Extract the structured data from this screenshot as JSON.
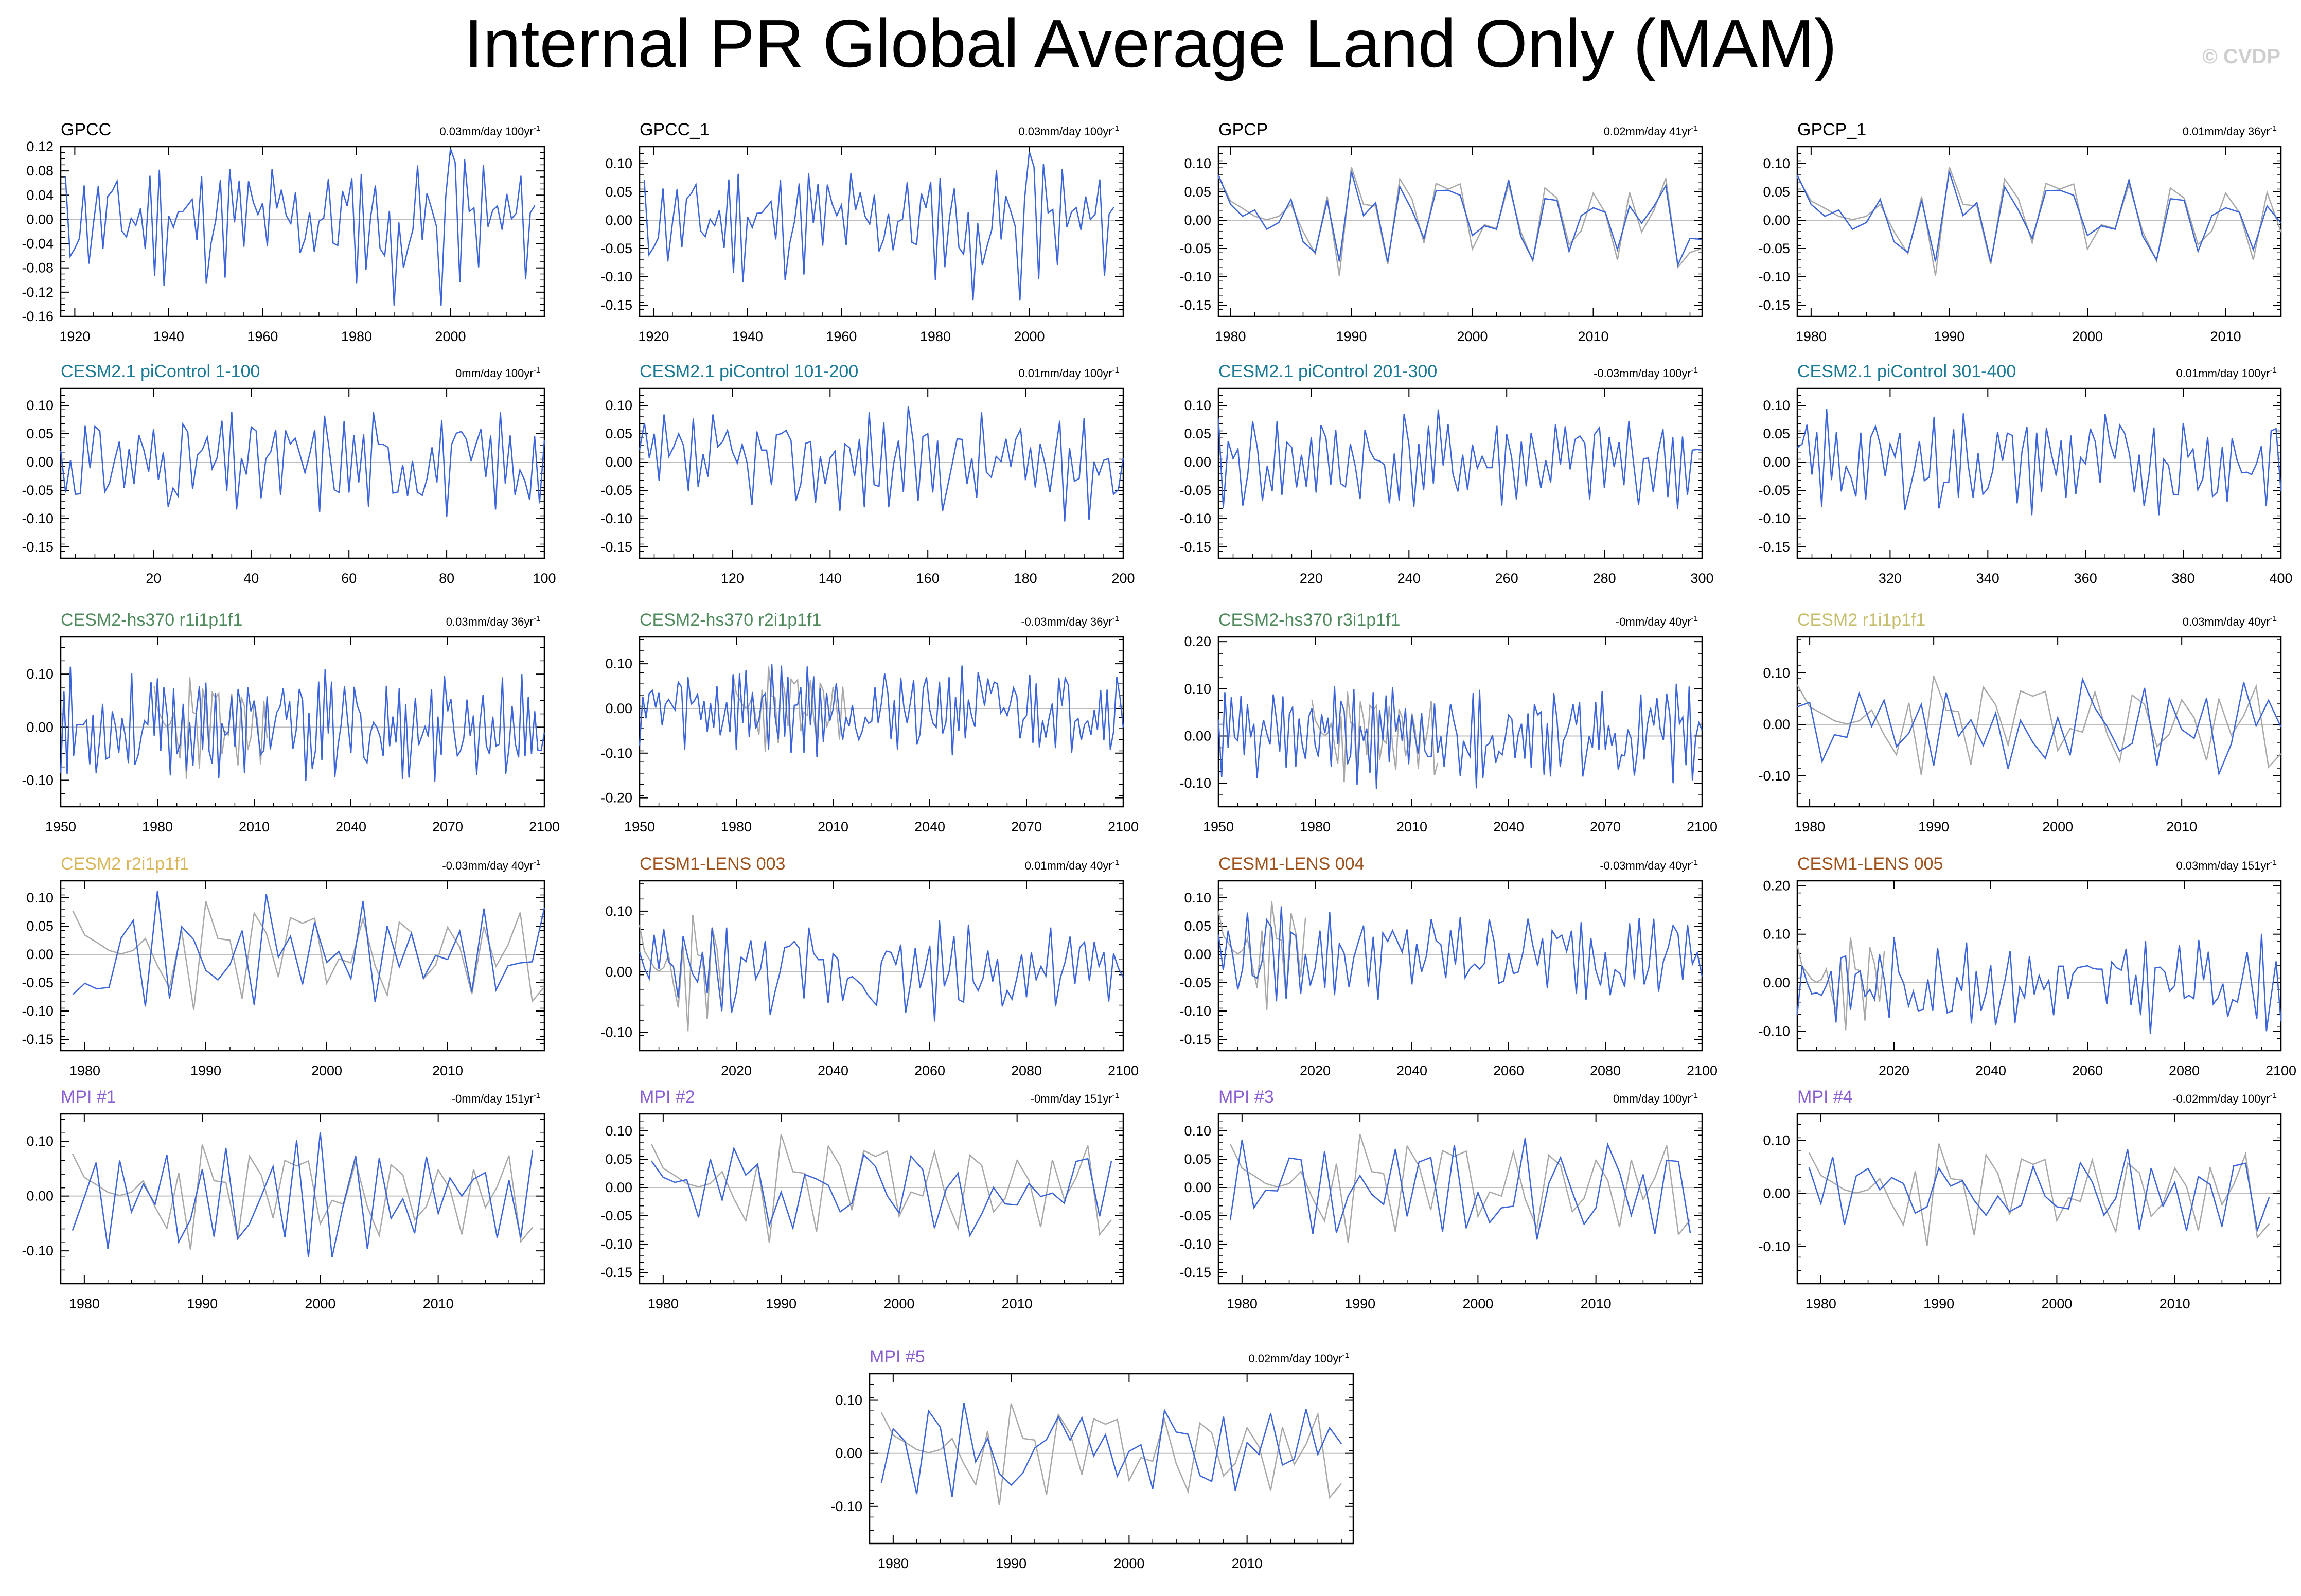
{
  "page": {
    "title": "Internal PR Global Average Land Only (MAM)",
    "copyright": "© CVDP"
  },
  "chart_data": [
    {
      "type": "line",
      "row": 0,
      "col": 0,
      "title": "GPCC",
      "title_color": "#000000",
      "trend": "0.03mm/day 100yr",
      "yticks": [
        0.12,
        0.08,
        0.04,
        0.0,
        -0.04,
        -0.08,
        -0.12,
        -0.16
      ],
      "yfmt": 2,
      "ylim": [
        -0.16,
        0.12
      ],
      "xlim": [
        1917,
        2020
      ],
      "xticks": [
        1920,
        1940,
        1960,
        1980,
        2000
      ],
      "n": 101,
      "x_start": 1918,
      "x_step": 1,
      "seed": 11,
      "amp": 0.055,
      "ref": false,
      "highlights": [
        [
          82,
          0.121
        ],
        [
          70,
          -0.142
        ],
        [
          80,
          -0.142
        ]
      ]
    },
    {
      "type": "line",
      "row": 0,
      "col": 1,
      "title": "GPCC_1",
      "title_color": "#000000",
      "trend": "0.03mm/day 100yr",
      "yticks": [
        0.1,
        0.05,
        0.0,
        -0.05,
        -0.1,
        -0.15
      ],
      "yfmt": 2,
      "ylim": [
        -0.17,
        0.13
      ],
      "xlim": [
        1917,
        2020
      ],
      "xticks": [
        1920,
        1940,
        1960,
        1980,
        2000
      ],
      "n": 101,
      "x_start": 1918,
      "x_step": 1,
      "seed": 11,
      "amp": 0.055,
      "ref": false,
      "highlights": [
        [
          82,
          0.121
        ],
        [
          70,
          -0.142
        ],
        [
          80,
          -0.142
        ]
      ]
    },
    {
      "type": "line",
      "row": 0,
      "col": 2,
      "title": "GPCP",
      "title_color": "#000000",
      "trend": "0.02mm/day 41yr",
      "yticks": [
        0.1,
        0.05,
        0.0,
        -0.05,
        -0.1,
        -0.15
      ],
      "yfmt": 2,
      "ylim": [
        -0.17,
        0.13
      ],
      "xlim": [
        1979,
        2019
      ],
      "xticks": [
        1980,
        1990,
        2000,
        2010
      ],
      "n": 41,
      "x_start": 1979,
      "x_step": 1,
      "seed": 23,
      "amp": 0.06,
      "ref": true,
      "ref_seed": 23,
      "ref_mix": 0.85
    },
    {
      "type": "line",
      "row": 0,
      "col": 3,
      "title": "GPCP_1",
      "title_color": "#000000",
      "trend": "0.01mm/day 36yr",
      "yticks": [
        0.1,
        0.05,
        0.0,
        -0.05,
        -0.1,
        -0.15
      ],
      "yfmt": 2,
      "ylim": [
        -0.17,
        0.13
      ],
      "xlim": [
        1979,
        2014
      ],
      "xticks": [
        1980,
        1990,
        2000,
        2010
      ],
      "n": 36,
      "x_start": 1979,
      "x_step": 1,
      "seed": 23,
      "amp": 0.06,
      "ref": true,
      "ref_seed": 23,
      "ref_mix": 0.85
    },
    {
      "type": "line",
      "row": 1,
      "col": 0,
      "title": "CESM2.1 piControl 1-100",
      "title_color": "#1a7a96",
      "trend": "0mm/day 100yr",
      "yticks": [
        0.1,
        0.05,
        0.0,
        -0.05,
        -0.1,
        -0.15
      ],
      "yfmt": 2,
      "ylim": [
        -0.17,
        0.13
      ],
      "xlim": [
        1,
        100
      ],
      "xticks": [
        20,
        40,
        60,
        80,
        100
      ],
      "n": 100,
      "x_start": 1,
      "x_step": 1,
      "seed": 31,
      "amp": 0.05,
      "ref": false
    },
    {
      "type": "line",
      "row": 1,
      "col": 1,
      "title": "CESM2.1 piControl 101-200",
      "title_color": "#1a7a96",
      "trend": "0.01mm/day 100yr",
      "yticks": [
        0.1,
        0.05,
        0.0,
        -0.05,
        -0.1,
        -0.15
      ],
      "yfmt": 2,
      "ylim": [
        -0.17,
        0.13
      ],
      "xlim": [
        101,
        200
      ],
      "xticks": [
        120,
        140,
        160,
        180,
        200
      ],
      "n": 100,
      "x_start": 101,
      "x_step": 1,
      "seed": 37,
      "amp": 0.05,
      "ref": false
    },
    {
      "type": "line",
      "row": 1,
      "col": 2,
      "title": "CESM2.1 piControl 201-300",
      "title_color": "#1a7a96",
      "trend": "-0.03mm/day 100yr",
      "yticks": [
        0.1,
        0.05,
        0.0,
        -0.05,
        -0.1,
        -0.15
      ],
      "yfmt": 2,
      "ylim": [
        -0.17,
        0.13
      ],
      "xlim": [
        201,
        300
      ],
      "xticks": [
        220,
        240,
        260,
        280,
        300
      ],
      "n": 100,
      "x_start": 201,
      "x_step": 1,
      "seed": 41,
      "amp": 0.05,
      "ref": false
    },
    {
      "type": "line",
      "row": 1,
      "col": 3,
      "title": "CESM2.1 piControl 301-400",
      "title_color": "#1a7a96",
      "trend": "0.01mm/day 100yr",
      "yticks": [
        0.1,
        0.05,
        0.0,
        -0.05,
        -0.1,
        -0.15
      ],
      "yfmt": 2,
      "ylim": [
        -0.17,
        0.13
      ],
      "xlim": [
        301,
        400
      ],
      "xticks": [
        320,
        340,
        360,
        380,
        400
      ],
      "n": 100,
      "x_start": 301,
      "x_step": 1,
      "seed": 43,
      "amp": 0.05,
      "ref": false
    },
    {
      "type": "line",
      "row": 2,
      "col": 0,
      "title": "CESM2-hs370 r1i1p1f1",
      "title_color": "#4f8a5c",
      "trend": "0.03mm/day 36yr",
      "yticks": [
        0.1,
        0.0,
        -0.1
      ],
      "yfmt": 2,
      "ylim": [
        -0.15,
        0.17
      ],
      "xlim": [
        1950,
        2100
      ],
      "xticks": [
        1950,
        1980,
        2010,
        2040,
        2070,
        2100
      ],
      "n": 151,
      "x_start": 1950,
      "x_step": 1,
      "seed": 53,
      "amp": 0.055,
      "ref": true,
      "ref_seed": 23,
      "ref_n": 36,
      "ref_x_start": 1979,
      "ref_mix": 0
    },
    {
      "type": "line",
      "row": 2,
      "col": 1,
      "title": "CESM2-hs370 r2i1p1f1",
      "title_color": "#4f8a5c",
      "trend": "-0.03mm/day 36yr",
      "yticks": [
        0.1,
        0.0,
        -0.1,
        -0.2
      ],
      "yfmt": 2,
      "ylim": [
        -0.22,
        0.16
      ],
      "xlim": [
        1950,
        2100
      ],
      "xticks": [
        1950,
        1980,
        2010,
        2040,
        2070,
        2100
      ],
      "n": 151,
      "x_start": 1950,
      "x_step": 1,
      "seed": 59,
      "amp": 0.055,
      "ref": true,
      "ref_seed": 23,
      "ref_n": 36,
      "ref_x_start": 1979,
      "ref_mix": 0
    },
    {
      "type": "line",
      "row": 2,
      "col": 2,
      "title": "CESM2-hs370 r3i1p1f1",
      "title_color": "#4f8a5c",
      "trend": "-0mm/day 40yr",
      "yticks": [
        0.2,
        0.1,
        0.0,
        -0.1
      ],
      "yfmt": 2,
      "ylim": [
        -0.15,
        0.21
      ],
      "xlim": [
        1950,
        2100
      ],
      "xticks": [
        1950,
        1980,
        2010,
        2040,
        2070,
        2100
      ],
      "n": 151,
      "x_start": 1950,
      "x_step": 1,
      "seed": 61,
      "amp": 0.055,
      "ref": true,
      "ref_seed": 23,
      "ref_n": 40,
      "ref_x_start": 1979,
      "ref_mix": 0
    },
    {
      "type": "line",
      "row": 2,
      "col": 3,
      "title": "CESM2 r1i1p1f1",
      "title_color": "#c6be6d",
      "trend": "0.03mm/day 40yr",
      "yticks": [
        0.1,
        0.0,
        -0.1
      ],
      "yfmt": 2,
      "ylim": [
        -0.16,
        0.17
      ],
      "xlim": [
        1979,
        2018
      ],
      "xticks": [
        1980,
        1990,
        2000,
        2010
      ],
      "n": 40,
      "x_start": 1979,
      "x_step": 1,
      "seed": 67,
      "amp": 0.05,
      "ref": true,
      "ref_seed": 23,
      "ref_mix": 0
    },
    {
      "type": "line",
      "row": 3,
      "col": 0,
      "title": "CESM2 r2i1p1f1",
      "title_color": "#d8b65a",
      "trend": "-0.03mm/day 40yr",
      "yticks": [
        0.1,
        0.05,
        0.0,
        -0.05,
        -0.1,
        -0.15
      ],
      "yfmt": 2,
      "ylim": [
        -0.17,
        0.13
      ],
      "xlim": [
        1978,
        2018
      ],
      "xticks": [
        1980,
        1990,
        2000,
        2010
      ],
      "n": 40,
      "x_start": 1979,
      "x_step": 1,
      "seed": 71,
      "amp": 0.05,
      "ref": true,
      "ref_seed": 23,
      "ref_mix": 0
    },
    {
      "type": "line",
      "row": 3,
      "col": 1,
      "title": "CESM1-LENS 003",
      "title_color": "#a0521c",
      "trend": "0.01mm/day 40yr",
      "yticks": [
        0.1,
        0.0,
        -0.1
      ],
      "yfmt": 2,
      "ylim": [
        -0.13,
        0.15
      ],
      "xlim": [
        2000,
        2100
      ],
      "xticks": [
        2020,
        2040,
        2060,
        2080,
        2100
      ],
      "n": 101,
      "x_start": 2000,
      "x_step": 1,
      "seed": 73,
      "amp": 0.045,
      "ref": true,
      "ref_seed": 23,
      "ref_n": 19,
      "ref_x_start": 2000,
      "ref_mix": 0
    },
    {
      "type": "line",
      "row": 3,
      "col": 2,
      "title": "CESM1-LENS 004",
      "title_color": "#a0521c",
      "trend": "-0.03mm/day 40yr",
      "yticks": [
        0.1,
        0.05,
        0.0,
        -0.05,
        -0.1,
        -0.15
      ],
      "yfmt": 2,
      "ylim": [
        -0.17,
        0.13
      ],
      "xlim": [
        2000,
        2100
      ],
      "xticks": [
        2020,
        2040,
        2060,
        2080,
        2100
      ],
      "n": 101,
      "x_start": 2000,
      "x_step": 1,
      "seed": 79,
      "amp": 0.045,
      "ref": true,
      "ref_seed": 23,
      "ref_n": 19,
      "ref_x_start": 2000,
      "ref_mix": 0
    },
    {
      "type": "line",
      "row": 3,
      "col": 3,
      "title": "CESM1-LENS 005",
      "title_color": "#a0521c",
      "trend": "0.03mm/day 151yr",
      "yticks": [
        0.2,
        0.1,
        0.0,
        -0.1
      ],
      "yfmt": 2,
      "ylim": [
        -0.14,
        0.21
      ],
      "xlim": [
        2000,
        2100
      ],
      "xticks": [
        2020,
        2040,
        2060,
        2080,
        2100
      ],
      "n": 101,
      "x_start": 2000,
      "x_step": 1,
      "seed": 83,
      "amp": 0.05,
      "ref": true,
      "ref_seed": 23,
      "ref_n": 19,
      "ref_x_start": 2000,
      "ref_mix": 0
    },
    {
      "type": "line",
      "row": 4,
      "col": 0,
      "title": "MPI #1",
      "title_color": "#8b5fd0",
      "trend": "-0mm/day 151yr",
      "yticks": [
        0.1,
        0.0,
        -0.1
      ],
      "yfmt": 2,
      "ylim": [
        -0.16,
        0.15
      ],
      "xlim": [
        1978,
        2019
      ],
      "xticks": [
        1980,
        1990,
        2000,
        2010
      ],
      "n": 40,
      "x_start": 1979,
      "x_step": 1,
      "seed": 89,
      "amp": 0.05,
      "ref": true,
      "ref_seed": 23,
      "ref_mix": 0
    },
    {
      "type": "line",
      "row": 4,
      "col": 1,
      "title": "MPI #2",
      "title_color": "#8b5fd0",
      "trend": "-0mm/day 151yr",
      "yticks": [
        0.1,
        0.05,
        0.0,
        -0.05,
        -0.1,
        -0.15
      ],
      "yfmt": 2,
      "ylim": [
        -0.17,
        0.13
      ],
      "xlim": [
        1978,
        2019
      ],
      "xticks": [
        1980,
        1990,
        2000,
        2010
      ],
      "n": 40,
      "x_start": 1979,
      "x_step": 1,
      "seed": 97,
      "amp": 0.05,
      "ref": true,
      "ref_seed": 23,
      "ref_mix": 0
    },
    {
      "type": "line",
      "row": 4,
      "col": 2,
      "title": "MPI #3",
      "title_color": "#8b5fd0",
      "trend": "0mm/day 100yr",
      "yticks": [
        0.1,
        0.05,
        0.0,
        -0.05,
        -0.1,
        -0.15
      ],
      "yfmt": 2,
      "ylim": [
        -0.17,
        0.13
      ],
      "xlim": [
        1978,
        2019
      ],
      "xticks": [
        1980,
        1990,
        2000,
        2010
      ],
      "n": 40,
      "x_start": 1979,
      "x_step": 1,
      "seed": 101,
      "amp": 0.05,
      "ref": true,
      "ref_seed": 23,
      "ref_mix": 0
    },
    {
      "type": "line",
      "row": 4,
      "col": 3,
      "title": "MPI #4",
      "title_color": "#8b5fd0",
      "trend": "-0.02mm/day 100yr",
      "yticks": [
        0.1,
        0.0,
        -0.1
      ],
      "yfmt": 2,
      "ylim": [
        -0.17,
        0.15
      ],
      "xlim": [
        1978,
        2019
      ],
      "xticks": [
        1980,
        1990,
        2000,
        2010
      ],
      "n": 40,
      "x_start": 1979,
      "x_step": 1,
      "seed": 103,
      "amp": 0.05,
      "ref": true,
      "ref_seed": 23,
      "ref_mix": 0
    },
    {
      "type": "line",
      "row": 5,
      "col": 1.5,
      "title": "MPI #5",
      "title_color": "#8b5fd0",
      "trend": "0.02mm/day 100yr",
      "yticks": [
        0.1,
        0.0,
        -0.1
      ],
      "yfmt": 2,
      "ylim": [
        -0.17,
        0.15
      ],
      "xlim": [
        1978,
        2019
      ],
      "xticks": [
        1980,
        1990,
        2000,
        2010
      ],
      "n": 40,
      "x_start": 1979,
      "x_step": 1,
      "seed": 107,
      "amp": 0.05,
      "ref": true,
      "ref_seed": 23,
      "ref_mix": 0
    }
  ],
  "colors": {
    "series": "#3a64d8",
    "reference": "#a8a8a8",
    "zero_line": "#bdbdbd",
    "axis": "#000000"
  }
}
